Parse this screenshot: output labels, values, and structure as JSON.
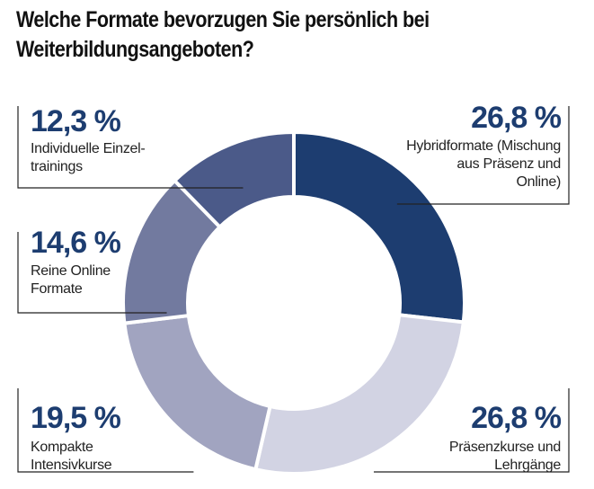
{
  "title_lines": [
    "Welche Formate bevorzugen Sie persönlich bei",
    "Weiterbildungsangeboten?"
  ],
  "chart_data": {
    "type": "pie",
    "variant": "donut",
    "slices": [
      {
        "label_lines": [
          "Hybridformate (Mischung",
          "aus Präsenz und",
          "Online)"
        ],
        "value": 26.8,
        "display": "26,8 %",
        "color": "#1d3d70"
      },
      {
        "label_lines": [
          "Präsenzkurse und",
          "Lehrgänge"
        ],
        "value": 26.8,
        "display": "26,8 %",
        "color": "#d2d3e3"
      },
      {
        "label_lines": [
          "Kompakte",
          "Intensivkurse"
        ],
        "value": 19.5,
        "display": "19,5 %",
        "color": "#a1a4c0"
      },
      {
        "label_lines": [
          "Reine Online",
          "Formate"
        ],
        "value": 14.6,
        "display": "14,6 %",
        "color": "#727a9f"
      },
      {
        "label_lines": [
          "Individuelle Einzel-",
          "trainings"
        ],
        "value": 12.3,
        "display": "12,3 %",
        "color": "#4b5a89"
      }
    ]
  }
}
